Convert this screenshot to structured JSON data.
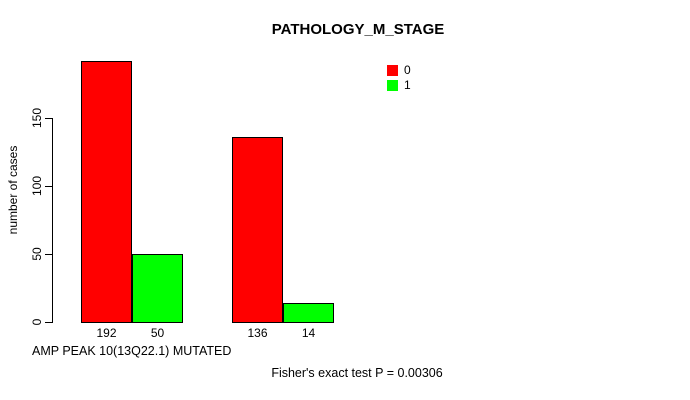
{
  "chart_data": {
    "type": "bar",
    "title": "PATHOLOGY_M_STAGE",
    "ylabel": "number of cases",
    "xlabel": "AMP PEAK 10(13Q22.1) MUTATED",
    "annotation": "Fisher's exact test P = 0.00306",
    "ylim": [
      0,
      150
    ],
    "yticks": [
      0,
      50,
      100,
      150
    ],
    "grid": false,
    "legend_position": "top-right",
    "bar_border_color": "#000000",
    "categories": [
      "group1",
      "group2"
    ],
    "series": [
      {
        "name": "0",
        "color": "#ff0000",
        "values": [
          192,
          136
        ]
      },
      {
        "name": "1",
        "color": "#00ff00",
        "values": [
          50,
          14
        ]
      }
    ],
    "value_labels": [
      [
        192,
        50
      ],
      [
        136,
        14
      ]
    ]
  }
}
